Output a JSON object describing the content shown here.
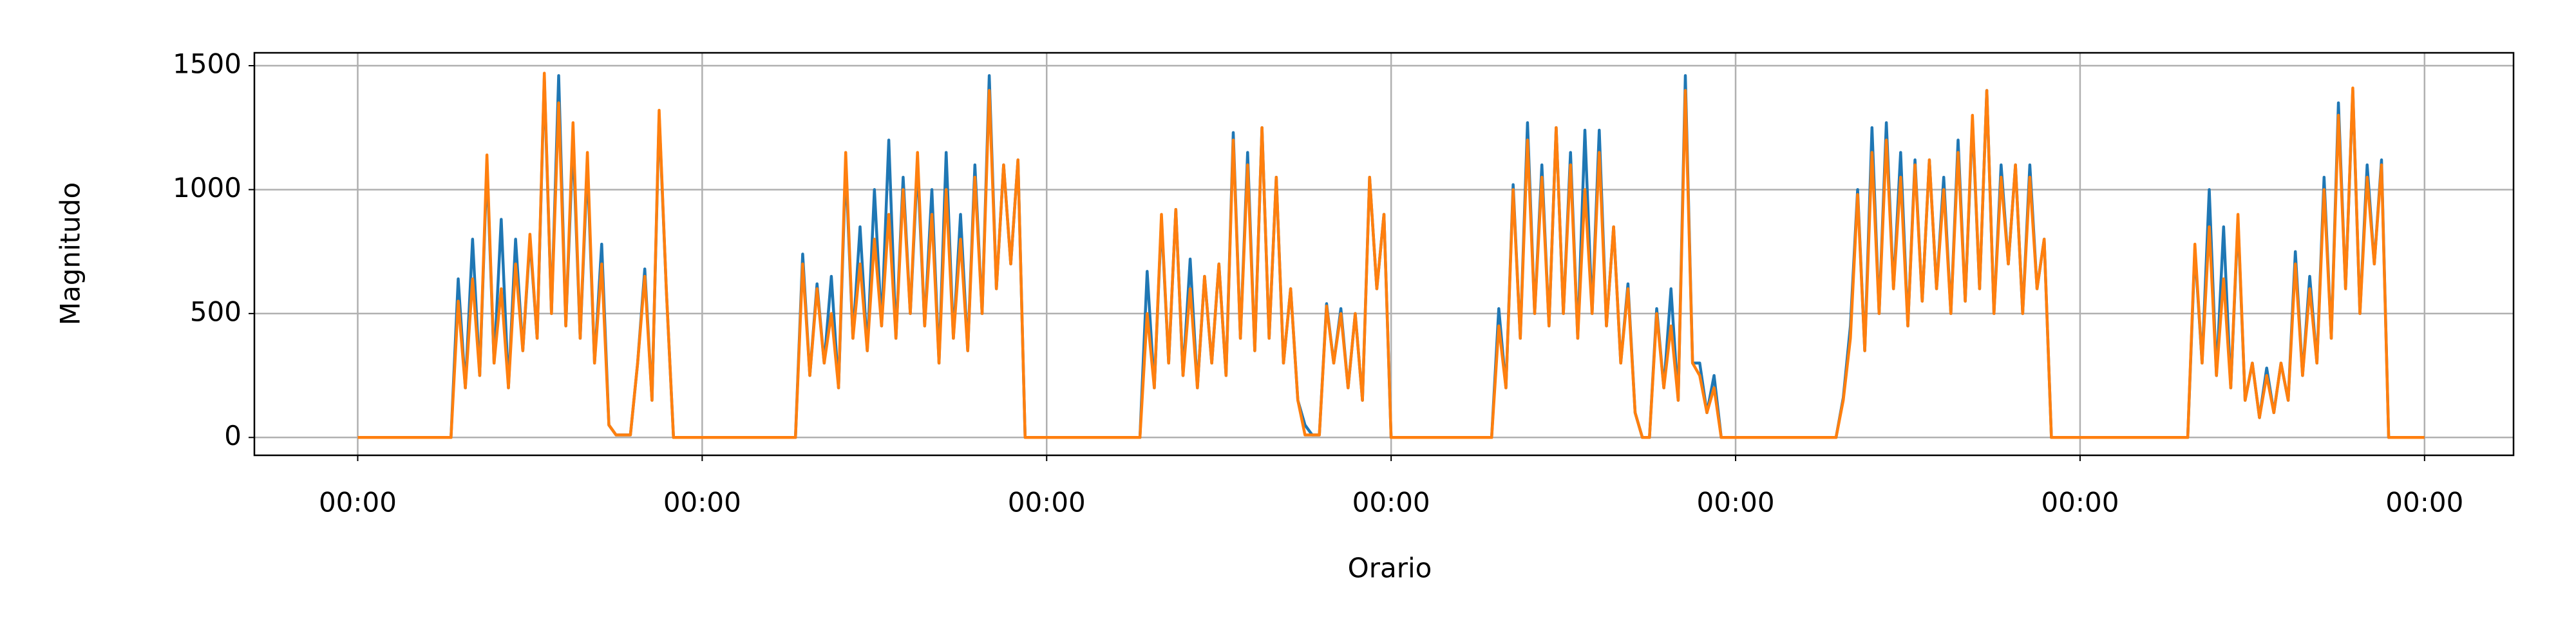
{
  "chart_data": {
    "type": "line",
    "xlabel": "Orario",
    "ylabel": "Magnitudo",
    "xlim": [
      -7.2,
      150.2
    ],
    "ylim": [
      -72,
      1552
    ],
    "xticks": [
      {
        "value": 0,
        "label": "00:00"
      },
      {
        "value": 24,
        "label": "00:00"
      },
      {
        "value": 48,
        "label": "00:00"
      },
      {
        "value": 72,
        "label": "00:00"
      },
      {
        "value": 96,
        "label": "00:00"
      },
      {
        "value": 120,
        "label": "00:00"
      },
      {
        "value": 144,
        "label": "00:00"
      }
    ],
    "yticks": [
      0,
      500,
      1000,
      1500
    ],
    "grid": true,
    "x": [
      0,
      6.5,
      7,
      7.5,
      8,
      8.5,
      9,
      9.5,
      10,
      10.5,
      11,
      11.5,
      12,
      12.5,
      13,
      13.5,
      14,
      14.5,
      15,
      15.5,
      16,
      16.5,
      17,
      17.5,
      18,
      18.5,
      19,
      19.5,
      20,
      20.5,
      21,
      21.5,
      22,
      22.5,
      23,
      23.5,
      24,
      30.5,
      31,
      31.5,
      32,
      32.5,
      33,
      33.5,
      34,
      34.5,
      35,
      35.5,
      36,
      36.5,
      37,
      37.5,
      38,
      38.5,
      39,
      39.5,
      40,
      40.5,
      41,
      41.5,
      42,
      42.5,
      43,
      43.5,
      44,
      44.5,
      45,
      45.5,
      46,
      46.5,
      47,
      47.5,
      48,
      54.5,
      55,
      55.5,
      56,
      56.5,
      57,
      57.5,
      58,
      58.5,
      59,
      59.5,
      60,
      60.5,
      61,
      61.5,
      62,
      62.5,
      63,
      63.5,
      64,
      64.5,
      65,
      65.5,
      66,
      66.5,
      67,
      67.5,
      68,
      68.5,
      69,
      69.5,
      70,
      70.5,
      71,
      71.5,
      72,
      78.5,
      79,
      79.5,
      80,
      80.5,
      81,
      81.5,
      82,
      82.5,
      83,
      83.5,
      84,
      84.5,
      85,
      85.5,
      86,
      86.5,
      87,
      87.5,
      88,
      88.5,
      89,
      89.5,
      90,
      90.5,
      91,
      91.5,
      92,
      92.5,
      93,
      93.5,
      94,
      94.5,
      95,
      95.5,
      96,
      102.5,
      103,
      103.5,
      104,
      104.5,
      105,
      105.5,
      106,
      106.5,
      107,
      107.5,
      108,
      108.5,
      109,
      109.5,
      110,
      110.5,
      111,
      111.5,
      112,
      112.5,
      113,
      113.5,
      114,
      114.5,
      115,
      115.5,
      116,
      116.5,
      117,
      117.5,
      118,
      118.5,
      119,
      119.5,
      120,
      126.5,
      127,
      127.5,
      128,
      128.5,
      129,
      129.5,
      130,
      130.5,
      131,
      131.5,
      132,
      132.5,
      133,
      133.5,
      134,
      134.5,
      135,
      135.5,
      136,
      136.5,
      137,
      137.5,
      138,
      138.5,
      139,
      139.5,
      140,
      140.5,
      141,
      141.5,
      142,
      142.5,
      143,
      143.5,
      144
    ],
    "series": [
      {
        "color": "#1f77b4",
        "values": [
          0,
          0,
          640,
          200,
          800,
          250,
          1100,
          300,
          880,
          200,
          800,
          350,
          800,
          400,
          1450,
          500,
          1460,
          450,
          1200,
          400,
          1100,
          300,
          780,
          50,
          10,
          10,
          10,
          300,
          680,
          150,
          1300,
          600,
          0,
          0,
          0,
          0,
          0,
          0,
          740,
          250,
          620,
          300,
          650,
          200,
          1100,
          400,
          850,
          350,
          1000,
          450,
          1200,
          400,
          1050,
          500,
          1100,
          450,
          1000,
          300,
          1150,
          400,
          900,
          350,
          1100,
          500,
          1460,
          600,
          1100,
          700,
          1120,
          0,
          0,
          0,
          0,
          0,
          670,
          200,
          880,
          300,
          920,
          250,
          720,
          200,
          650,
          300,
          700,
          250,
          1230,
          400,
          1150,
          350,
          1250,
          400,
          1050,
          300,
          600,
          150,
          50,
          10,
          10,
          540,
          300,
          520,
          200,
          500,
          150,
          1050,
          600,
          900,
          0,
          0,
          0,
          520,
          200,
          1020,
          400,
          1270,
          500,
          1100,
          450,
          1250,
          500,
          1150,
          400,
          1240,
          500,
          1240,
          450,
          850,
          300,
          620,
          100,
          0,
          0,
          520,
          200,
          600,
          150,
          1460,
          300,
          300,
          100,
          250,
          0,
          0,
          0,
          0,
          0,
          160,
          450,
          1000,
          350,
          1250,
          500,
          1270,
          600,
          1150,
          450,
          1120,
          550,
          1120,
          600,
          1050,
          500,
          1200,
          550,
          1280,
          600,
          1400,
          500,
          1100,
          700,
          1100,
          500,
          1100,
          600,
          800,
          0,
          0,
          0,
          0,
          0,
          0,
          0,
          0,
          760,
          300,
          1000,
          250,
          850,
          200,
          880,
          150,
          300,
          80,
          280,
          100,
          300,
          150,
          750,
          250,
          650,
          300,
          1050,
          400,
          1350,
          600,
          1400,
          500,
          1100,
          700,
          1120,
          0,
          0,
          0,
          0,
          0,
          0
        ]
      },
      {
        "color": "#ff7f0e",
        "values": [
          0,
          0,
          550,
          200,
          640,
          250,
          1140,
          300,
          600,
          200,
          700,
          350,
          820,
          400,
          1470,
          500,
          1350,
          450,
          1270,
          400,
          1150,
          300,
          700,
          50,
          10,
          10,
          10,
          300,
          650,
          150,
          1320,
          600,
          0,
          0,
          0,
          0,
          0,
          0,
          700,
          250,
          600,
          300,
          500,
          200,
          1150,
          400,
          700,
          350,
          800,
          450,
          900,
          400,
          1000,
          500,
          1150,
          450,
          900,
          300,
          1000,
          400,
          800,
          350,
          1050,
          500,
          1400,
          600,
          1100,
          700,
          1120,
          0,
          0,
          0,
          0,
          0,
          500,
          200,
          900,
          300,
          920,
          250,
          600,
          200,
          650,
          300,
          700,
          250,
          1200,
          400,
          1100,
          350,
          1250,
          400,
          1050,
          300,
          600,
          150,
          10,
          10,
          10,
          530,
          300,
          500,
          200,
          500,
          150,
          1050,
          600,
          900,
          0,
          0,
          0,
          450,
          200,
          1000,
          400,
          1200,
          500,
          1050,
          450,
          1250,
          500,
          1100,
          400,
          1000,
          500,
          1150,
          450,
          850,
          300,
          600,
          100,
          0,
          0,
          500,
          200,
          450,
          150,
          1400,
          300,
          250,
          100,
          200,
          0,
          0,
          0,
          0,
          0,
          150,
          400,
          980,
          350,
          1150,
          500,
          1200,
          600,
          1050,
          450,
          1100,
          550,
          1120,
          600,
          1000,
          500,
          1150,
          550,
          1300,
          600,
          1400,
          500,
          1050,
          700,
          1100,
          500,
          1050,
          600,
          800,
          0,
          0,
          0,
          0,
          0,
          0,
          0,
          0,
          780,
          300,
          850,
          250,
          640,
          200,
          900,
          150,
          300,
          80,
          250,
          100,
          300,
          150,
          700,
          250,
          600,
          300,
          1000,
          400,
          1300,
          600,
          1410,
          500,
          1050,
          700,
          1100,
          0,
          0,
          0,
          0,
          0,
          0
        ]
      }
    ]
  }
}
